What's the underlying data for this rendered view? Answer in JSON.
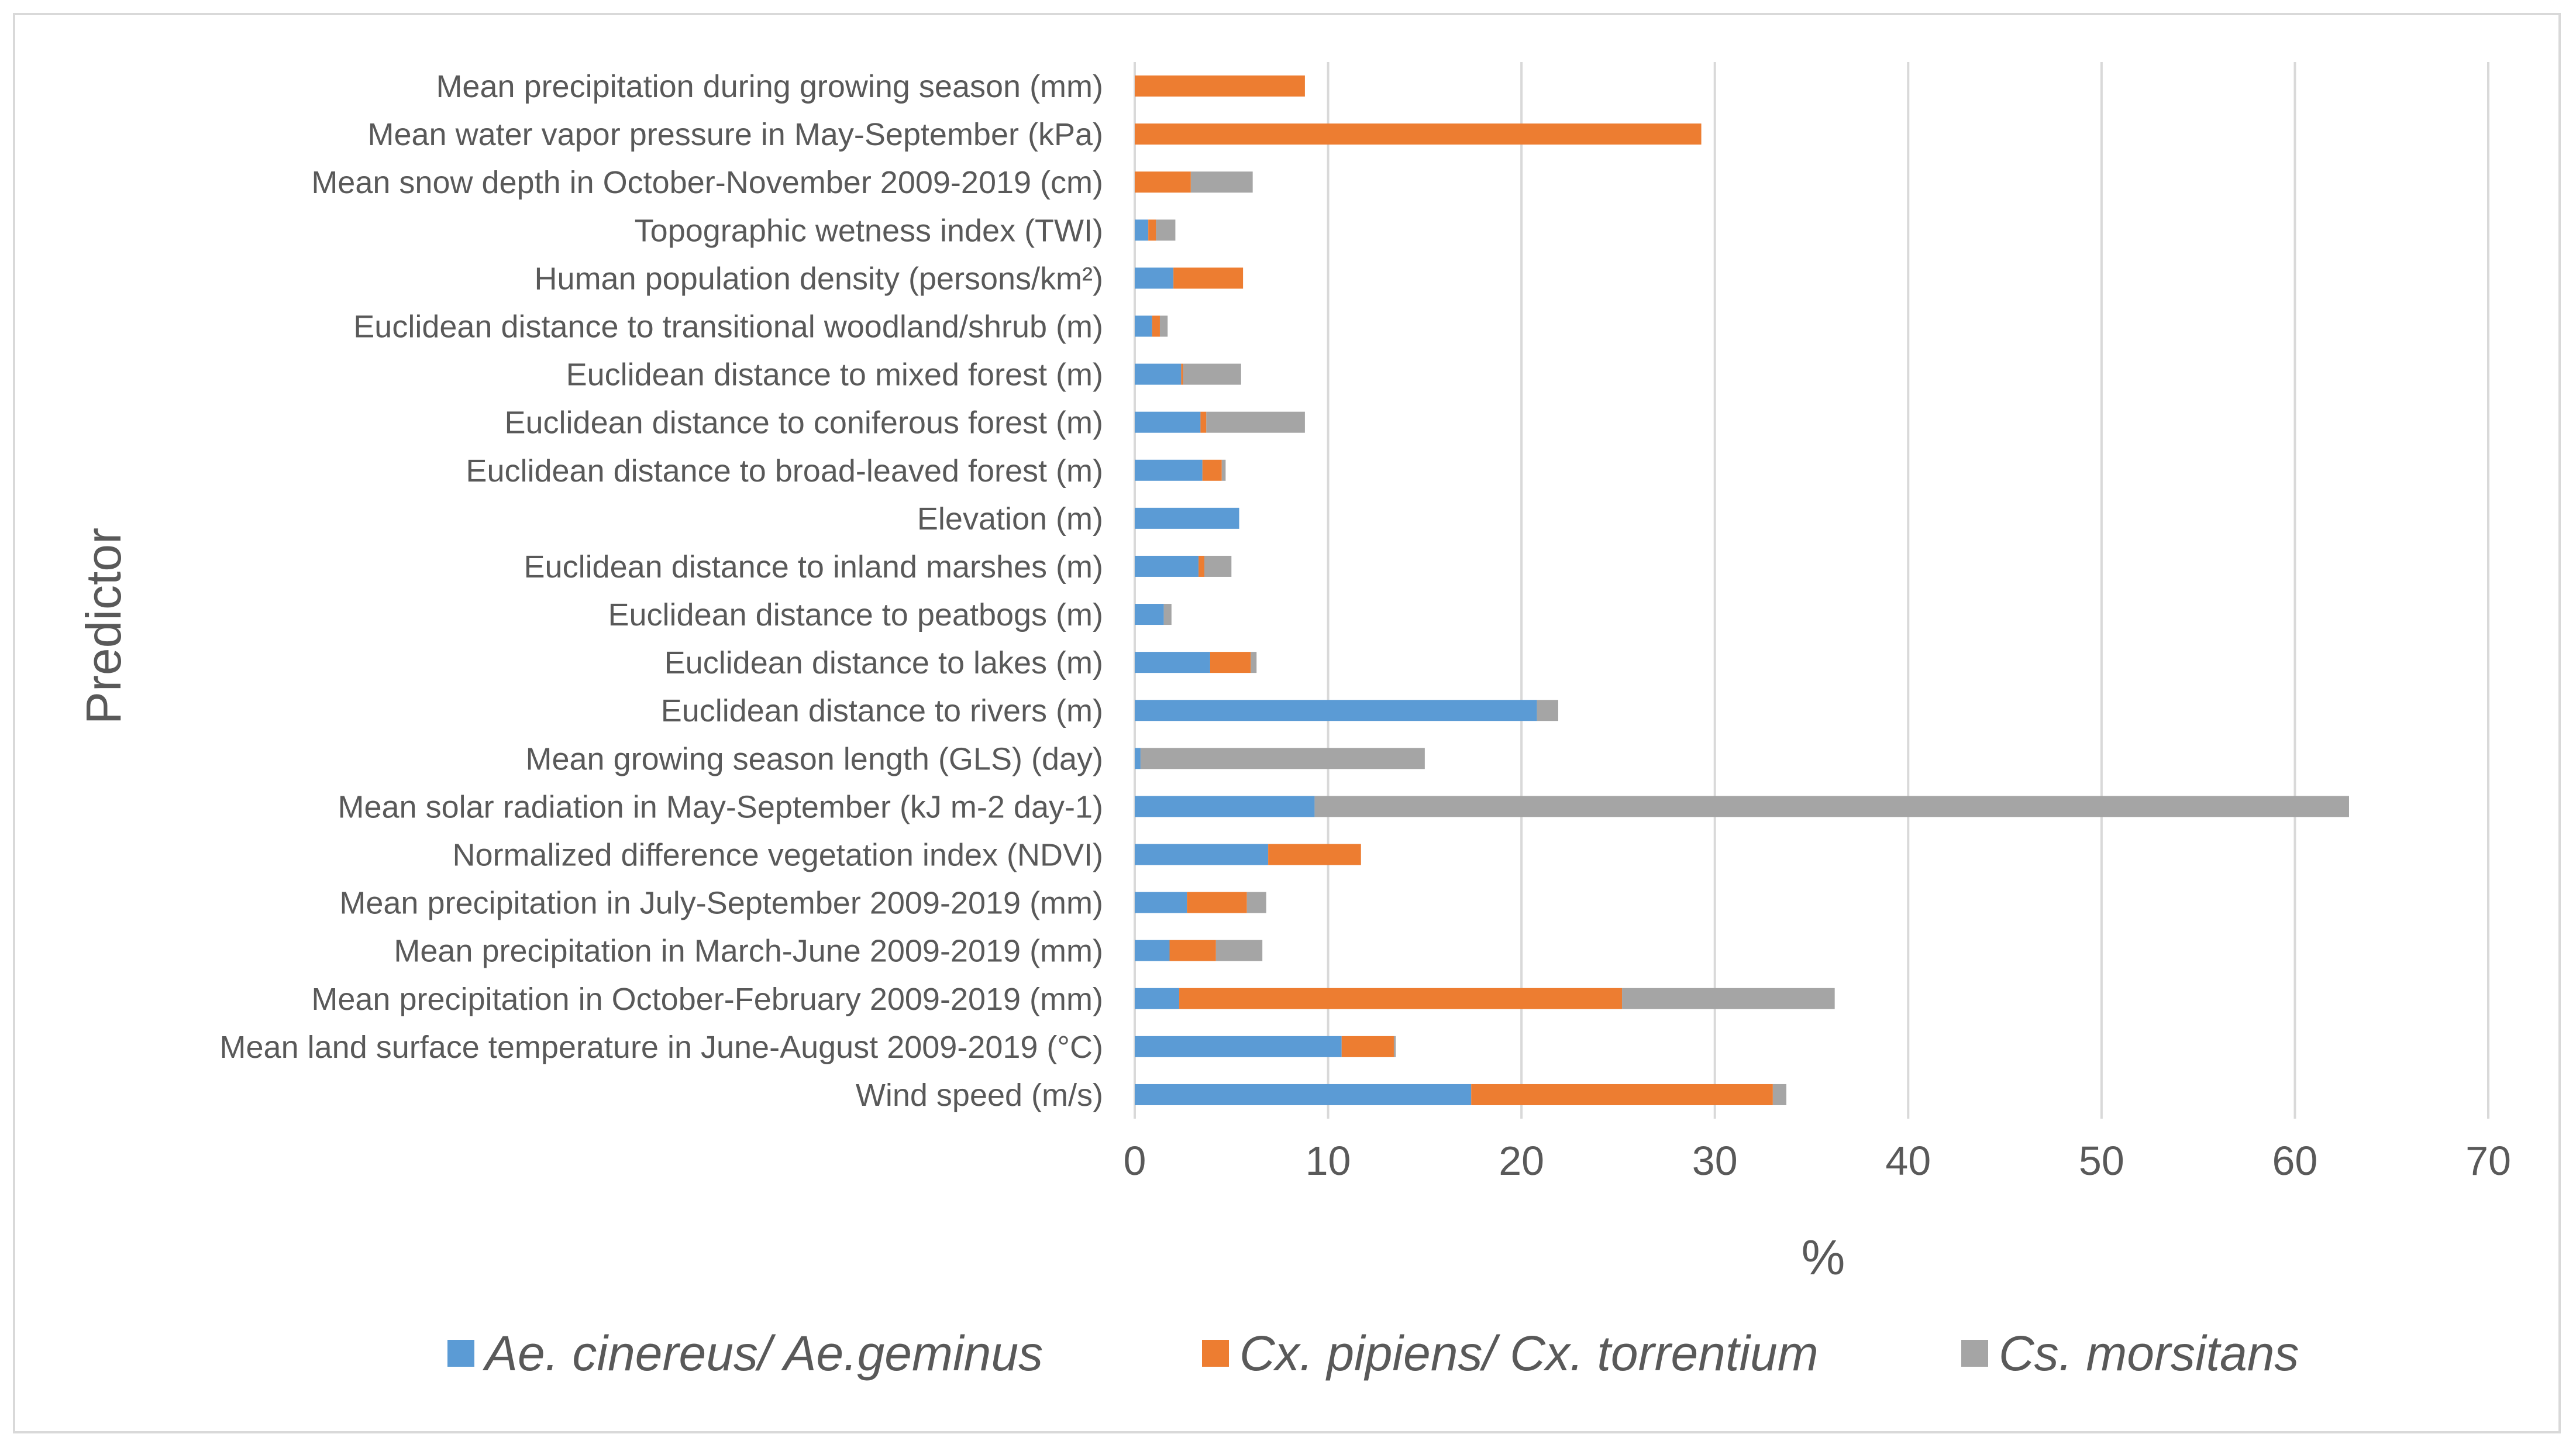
{
  "chart_data": {
    "type": "bar",
    "orientation": "horizontal",
    "stacked": true,
    "title": "",
    "xlabel": "%",
    "ylabel": "Predictor",
    "xlim": [
      0,
      70
    ],
    "x_ticks": [
      0,
      10,
      20,
      30,
      40,
      50,
      60,
      70
    ],
    "grid": true,
    "legend_position": "bottom",
    "categories": [
      "Mean precipitation during growing season (mm)",
      "Mean water vapor pressure in May-September (kPa)",
      "Mean snow depth in October-November 2009-2019 (cm)",
      "Topographic wetness index (TWI)",
      "Human population density (persons/km²)",
      "Euclidean distance to transitional woodland/shrub (m)",
      "Euclidean distance to mixed forest (m)",
      "Euclidean distance to coniferous forest (m)",
      "Euclidean distance to broad-leaved forest (m)",
      "Elevation (m)",
      "Euclidean distance to inland marshes (m)",
      "Euclidean distance to peatbogs (m)",
      "Euclidean distance to lakes (m)",
      "Euclidean distance to rivers (m)",
      "Mean growing season length (GLS) (day)",
      "Mean solar radiation in May-September (kJ m-2 day-1)",
      "Normalized difference vegetation index (NDVI)",
      "Mean precipitation in July-September 2009-2019 (mm)",
      "Mean precipitation in March-June 2009-2019 (mm)",
      "Mean precipitation in October-February 2009-2019 (mm)",
      "Mean land surface temperature in June-August 2009-2019 (°C)",
      "Wind speed (m/s)"
    ],
    "series": [
      {
        "name": "Ae. cinereus/ Ae.geminus",
        "color": "#5b9bd5",
        "values": [
          0,
          0,
          0,
          0.7,
          2.0,
          0.9,
          2.4,
          3.4,
          3.5,
          5.4,
          3.3,
          1.5,
          3.9,
          20.8,
          0.3,
          9.3,
          6.9,
          2.7,
          1.8,
          2.3,
          10.7,
          17.4
        ]
      },
      {
        "name": "Cx. pipiens/ Cx. torrentium",
        "color": "#ed7d31",
        "values": [
          8.8,
          29.3,
          2.9,
          0.4,
          3.6,
          0.4,
          0.1,
          0.3,
          1.0,
          0,
          0.3,
          0,
          2.1,
          0,
          0,
          0,
          4.8,
          3.1,
          2.4,
          22.9,
          2.7,
          15.6
        ]
      },
      {
        "name": "Cs. morsitans",
        "color": "#a5a5a5",
        "values": [
          0,
          0,
          3.2,
          1.0,
          0,
          0.4,
          3.0,
          5.1,
          0.2,
          0,
          1.4,
          0.4,
          0.3,
          1.1,
          14.7,
          53.5,
          0,
          1.0,
          2.4,
          11.0,
          0.1,
          0.7
        ]
      }
    ]
  }
}
